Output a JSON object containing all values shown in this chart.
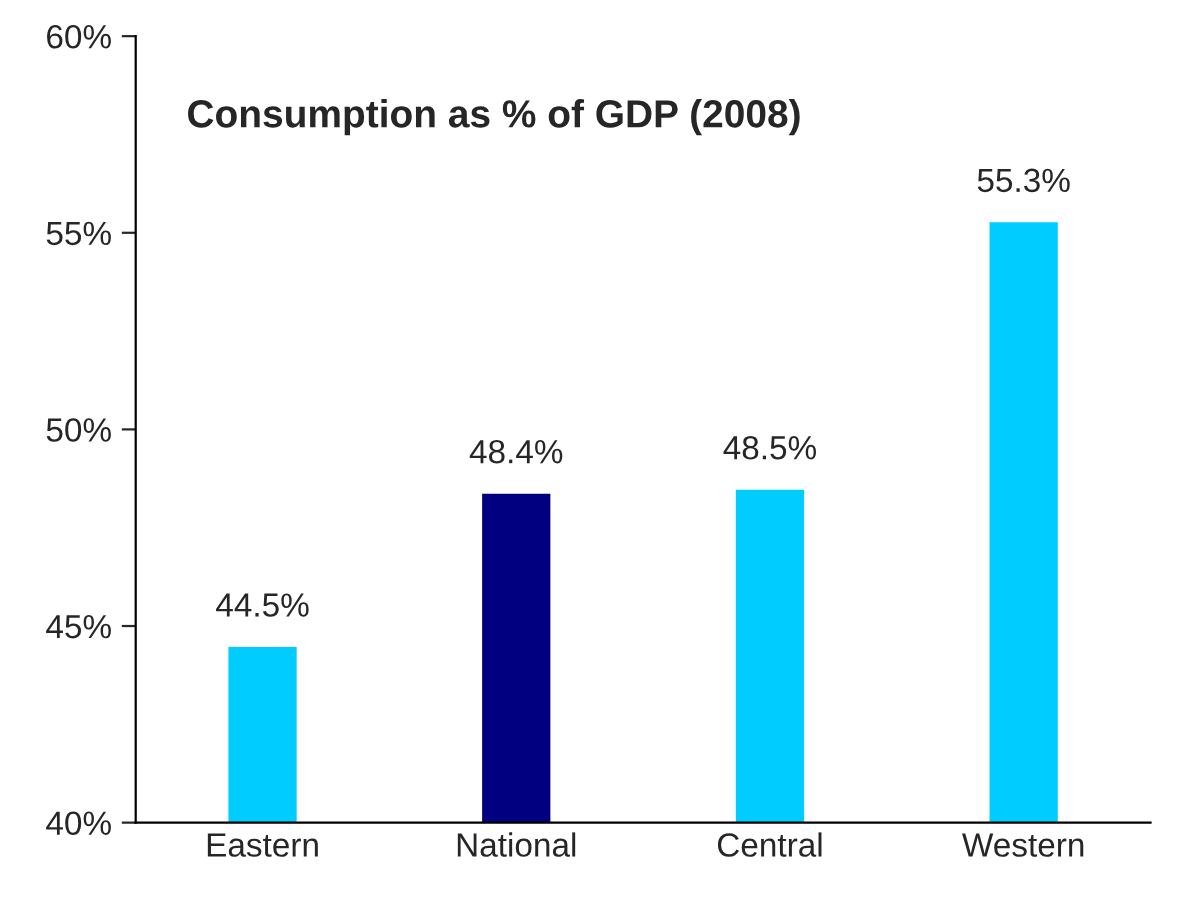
{
  "chart_data": {
    "type": "bar",
    "title": "Consumption as % of GDP (2008)",
    "categories": [
      "Eastern",
      "National",
      "Central",
      "Western"
    ],
    "values": [
      44.5,
      48.4,
      48.5,
      55.3
    ],
    "colors": [
      "#00ccff",
      "#000080",
      "#00ccff",
      "#00ccff"
    ],
    "value_labels": [
      "44.5%",
      "48.4%",
      "48.5%",
      "55.3%"
    ],
    "ylim": [
      40,
      60
    ],
    "yticks": [
      {
        "value": 40,
        "label": "40%"
      },
      {
        "value": 45,
        "label": "45%"
      },
      {
        "value": 50,
        "label": "50%"
      },
      {
        "value": 55,
        "label": "55%"
      },
      {
        "value": 60,
        "label": "60%"
      }
    ],
    "grid": false,
    "legend": false
  }
}
